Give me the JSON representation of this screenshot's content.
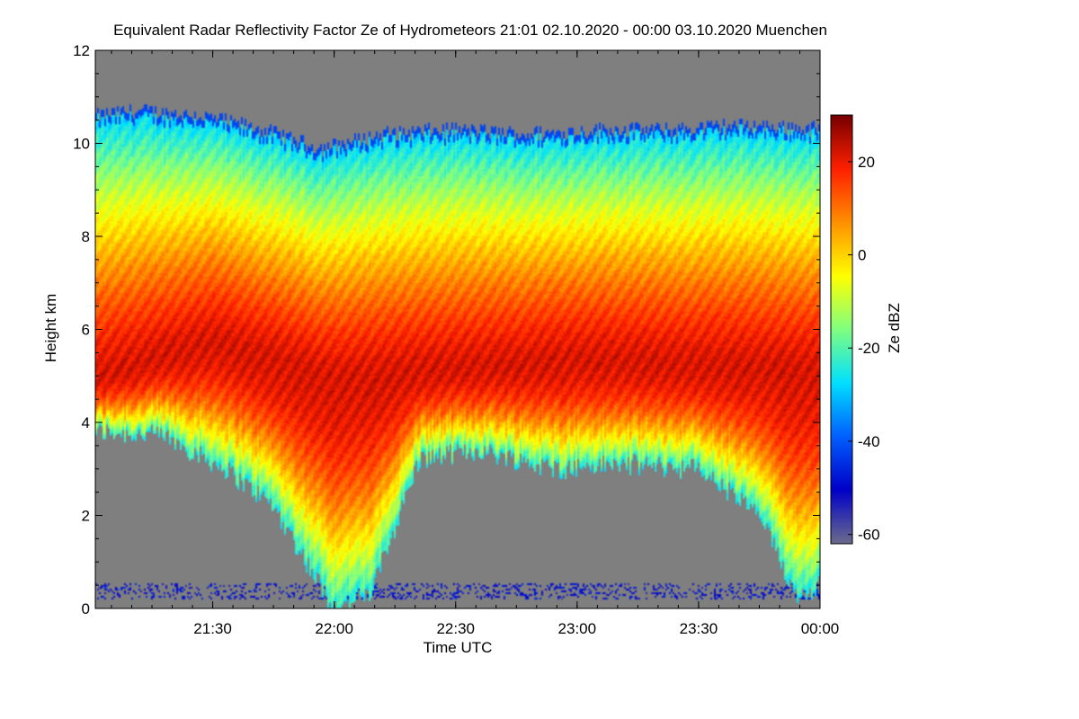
{
  "chart_data": {
    "type": "heatmap",
    "title": "Equivalent Radar Reflectivity Factor Ze of Hydrometeors   21:01 02.10.2020 - 00:00 03.10.2020 Muenchen",
    "xlabel": "Time UTC",
    "ylabel": "Height km",
    "x_range_hours": [
      21.0167,
      24.0
    ],
    "x_ticks": [
      {
        "value": 21.5,
        "label": "21:30"
      },
      {
        "value": 22.0,
        "label": "22:00"
      },
      {
        "value": 22.5,
        "label": "22:30"
      },
      {
        "value": 23.0,
        "label": "23:00"
      },
      {
        "value": 23.5,
        "label": "23:30"
      },
      {
        "value": 24.0,
        "label": "00:00"
      }
    ],
    "ylim": [
      0,
      12
    ],
    "y_ticks": [
      0,
      2,
      4,
      6,
      8,
      10,
      12
    ],
    "colorbar": {
      "label": "Ze dBZ",
      "range": [
        -62,
        30
      ],
      "ticks": [
        -60,
        -40,
        -20,
        0,
        20
      ]
    },
    "colors": {
      "no_signal": "#7f7f7f",
      "colormap": [
        "#6a6a8e",
        "#0000c8",
        "#0060ff",
        "#00e0ff",
        "#80ff80",
        "#ffff00",
        "#ff9000",
        "#ff2000",
        "#7a0000"
      ]
    },
    "field_description": {
      "cloud_top_km": [
        {
          "time": 21.02,
          "top": 10.6
        },
        {
          "time": 21.2,
          "top": 10.7
        },
        {
          "time": 21.45,
          "top": 10.6
        },
        {
          "time": 21.7,
          "top": 10.3
        },
        {
          "time": 21.95,
          "top": 9.9
        },
        {
          "time": 22.2,
          "top": 10.2
        },
        {
          "time": 22.5,
          "top": 10.3
        },
        {
          "time": 22.8,
          "top": 10.2
        },
        {
          "time": 23.1,
          "top": 10.3
        },
        {
          "time": 23.4,
          "top": 10.3
        },
        {
          "time": 23.7,
          "top": 10.4
        },
        {
          "time": 24.0,
          "top": 10.3
        }
      ],
      "cloud_base_km": [
        {
          "time": 21.02,
          "base": 3.8
        },
        {
          "time": 21.3,
          "base": 3.7
        },
        {
          "time": 21.55,
          "base": 3.0
        },
        {
          "time": 21.75,
          "base": 2.2
        },
        {
          "time": 22.0,
          "base": 0.0
        },
        {
          "time": 22.15,
          "base": 0.3
        },
        {
          "time": 22.35,
          "base": 3.2
        },
        {
          "time": 22.6,
          "base": 3.4
        },
        {
          "time": 22.9,
          "base": 3.0
        },
        {
          "time": 23.2,
          "base": 3.1
        },
        {
          "time": 23.5,
          "base": 3.0
        },
        {
          "time": 23.75,
          "base": 2.0
        },
        {
          "time": 23.9,
          "base": 0.3
        },
        {
          "time": 24.0,
          "base": 0.5
        }
      ],
      "max_core_km": [
        {
          "time": 21.02,
          "core": 5.0
        },
        {
          "time": 21.5,
          "core": 5.8
        },
        {
          "time": 22.0,
          "core": 5.0
        },
        {
          "time": 22.5,
          "core": 5.2
        },
        {
          "time": 23.0,
          "core": 5.4
        },
        {
          "time": 23.5,
          "core": 5.3
        },
        {
          "time": 24.0,
          "core": 5.2
        }
      ],
      "max_dbz": 22
    }
  }
}
